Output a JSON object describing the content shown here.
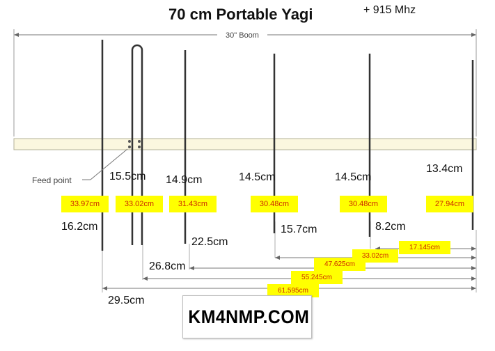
{
  "title": "70 cm Portable Yagi",
  "frequency_note": "+ 915 Mhz",
  "boom_label": "30\" Boom",
  "feed_point_label": "Feed point",
  "element_labels": {
    "reflector_length": "16.2cm",
    "driven_length": "15.5cm",
    "dir1_length": "14.9cm",
    "dir2_length": "14.5cm",
    "dir3_length": "14.5cm",
    "dir4_length": "13.4cm"
  },
  "positions_from_front": {
    "reflector": "29.5cm",
    "driven": "26.8cm",
    "dir1": "22.5cm",
    "dir2": "15.7cm",
    "dir3": "8.2cm"
  },
  "yellow_labels": {
    "reflector": "33.97cm",
    "driven": "33.02cm",
    "dir1": "31.43cm",
    "dir2": "30.48cm",
    "dir3": "30.48cm",
    "dir4": "27.94cm"
  },
  "dimension_labels": {
    "d1": "17.145cm",
    "d2": "33.02cm",
    "d3": "47.625cm",
    "d4": "55.245cm",
    "d5": "61.595cm"
  },
  "logo_text": "KM4NMP.COM",
  "colors": {
    "highlight": "#ffff00",
    "highlight_text": "#cc2a00",
    "boom_fill": "#fbf7df"
  }
}
